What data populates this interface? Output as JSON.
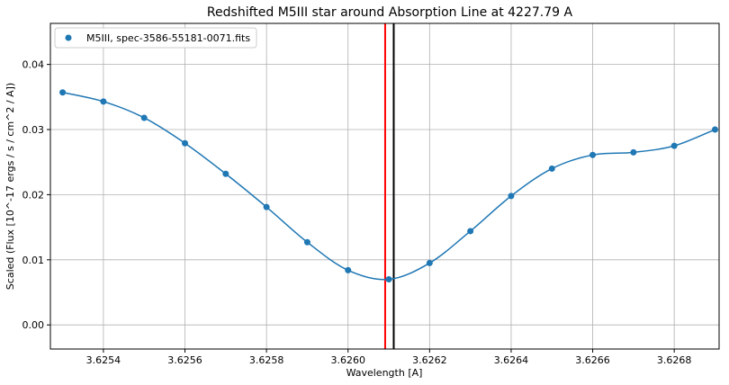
{
  "chart_data": {
    "type": "line",
    "title": "Redshifted M5III star around Absorption Line at 4227.79 A",
    "xlabel": "Wavelength [A]",
    "ylabel": "Scaled (Flux [10^-17 ergs / s / cm^2 / A])",
    "xlim": [
      3.62527,
      3.62691
    ],
    "ylim": [
      -0.0037,
      0.0463
    ],
    "x_ticks": [
      3.6254,
      3.6256,
      3.6258,
      3.626,
      3.6262,
      3.6264,
      3.6266,
      3.6268
    ],
    "x_tick_labels": [
      "3.6254",
      "3.6256",
      "3.6258",
      "3.6260",
      "3.6262",
      "3.6264",
      "3.6266",
      "3.6268"
    ],
    "y_ticks": [
      0.0,
      0.01,
      0.02,
      0.03,
      0.04
    ],
    "y_tick_labels": [
      "0.00",
      "0.01",
      "0.02",
      "0.03",
      "0.04"
    ],
    "grid": true,
    "legend_position": "top-left",
    "series": [
      {
        "name": "M5III, spec-3586-55181-0071.fits",
        "color": "#1f77b4",
        "marker": "circle",
        "smooth": true,
        "x": [
          3.6253,
          3.6254,
          3.6255,
          3.6256,
          3.6257,
          3.6258,
          3.6259,
          3.626,
          3.6261,
          3.6262,
          3.6263,
          3.6264,
          3.6265,
          3.6266,
          3.6267,
          3.6268,
          3.6269
        ],
        "y": [
          0.0357,
          0.0343,
          0.0318,
          0.0279,
          0.0232,
          0.0181,
          0.0127,
          0.0084,
          0.007,
          0.0095,
          0.0144,
          0.0198,
          0.024,
          0.0261,
          0.0265,
          0.0275,
          0.03
        ]
      }
    ],
    "vertical_lines": [
      {
        "x": 3.626091,
        "color": "#ff0000"
      },
      {
        "x": 3.626112,
        "color": "#000000"
      }
    ]
  }
}
